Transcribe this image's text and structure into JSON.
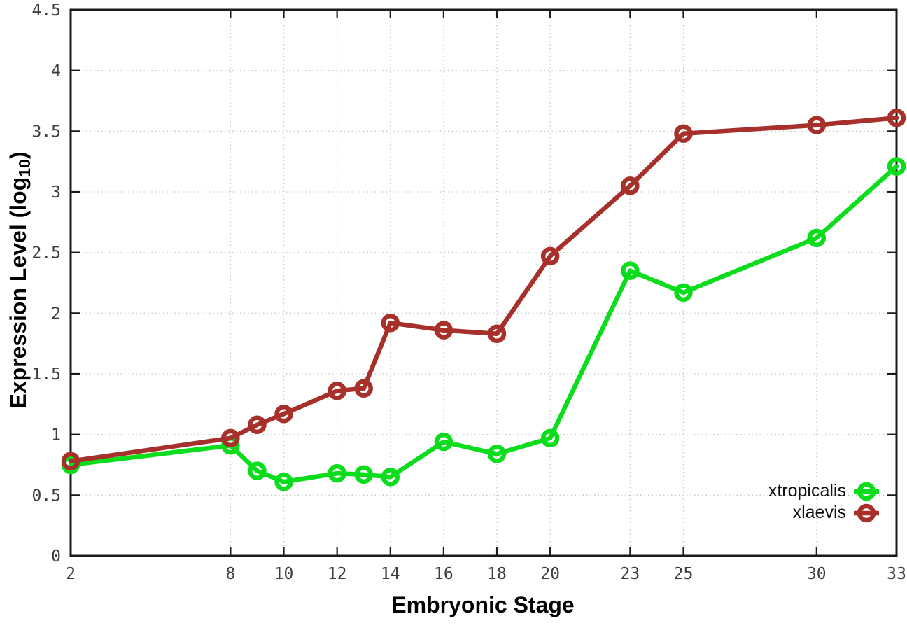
{
  "figure": {
    "background": "#ffffff",
    "border_color": "#1a1a1a",
    "grid_color": "#c7c7c7",
    "tick_label_color": "#3d3d3d",
    "axis_title_color": "#000000"
  },
  "chart_data": {
    "type": "line",
    "title": "",
    "xlabel": "Embryonic Stage",
    "ylabel": "Expression Level (log10)",
    "ylabel_parts": {
      "prefix": "Expression Level (log",
      "sub": "10",
      "suffix": ")"
    },
    "xlim": [
      2,
      33
    ],
    "ylim": [
      0,
      4.5
    ],
    "grid": true,
    "legend_position": "bottom-right",
    "marker": "open-circle",
    "x_tick_values": [
      2,
      8,
      10,
      12,
      14,
      16,
      18,
      20,
      23,
      25,
      30,
      33
    ],
    "x_tick_labels": [
      "2",
      "8",
      "10",
      "12",
      "14",
      "16",
      "18",
      "20",
      "23",
      "25",
      "30",
      "33"
    ],
    "y_tick_values": [
      0,
      0.5,
      1,
      1.5,
      2,
      2.5,
      3,
      3.5,
      4,
      4.5
    ],
    "y_tick_labels": [
      "0",
      "0.5",
      "1",
      "1.5",
      "2",
      "2.5",
      "3",
      "3.5",
      "4",
      "4.5"
    ],
    "x": [
      2,
      8,
      9,
      10,
      12,
      13,
      14,
      16,
      18,
      20,
      23,
      25,
      30,
      33
    ],
    "series": [
      {
        "name": "xtropicalis",
        "color": "#0bdd1c",
        "values": [
          0.75,
          0.91,
          0.7,
          0.61,
          0.68,
          0.67,
          0.65,
          0.94,
          0.84,
          0.97,
          2.35,
          2.17,
          2.62,
          3.21
        ]
      },
      {
        "name": "xlaevis",
        "color": "#a7302a",
        "values": [
          0.78,
          0.97,
          1.08,
          1.17,
          1.36,
          1.38,
          1.92,
          1.86,
          1.83,
          2.47,
          3.05,
          3.48,
          3.55,
          3.61
        ]
      }
    ]
  }
}
